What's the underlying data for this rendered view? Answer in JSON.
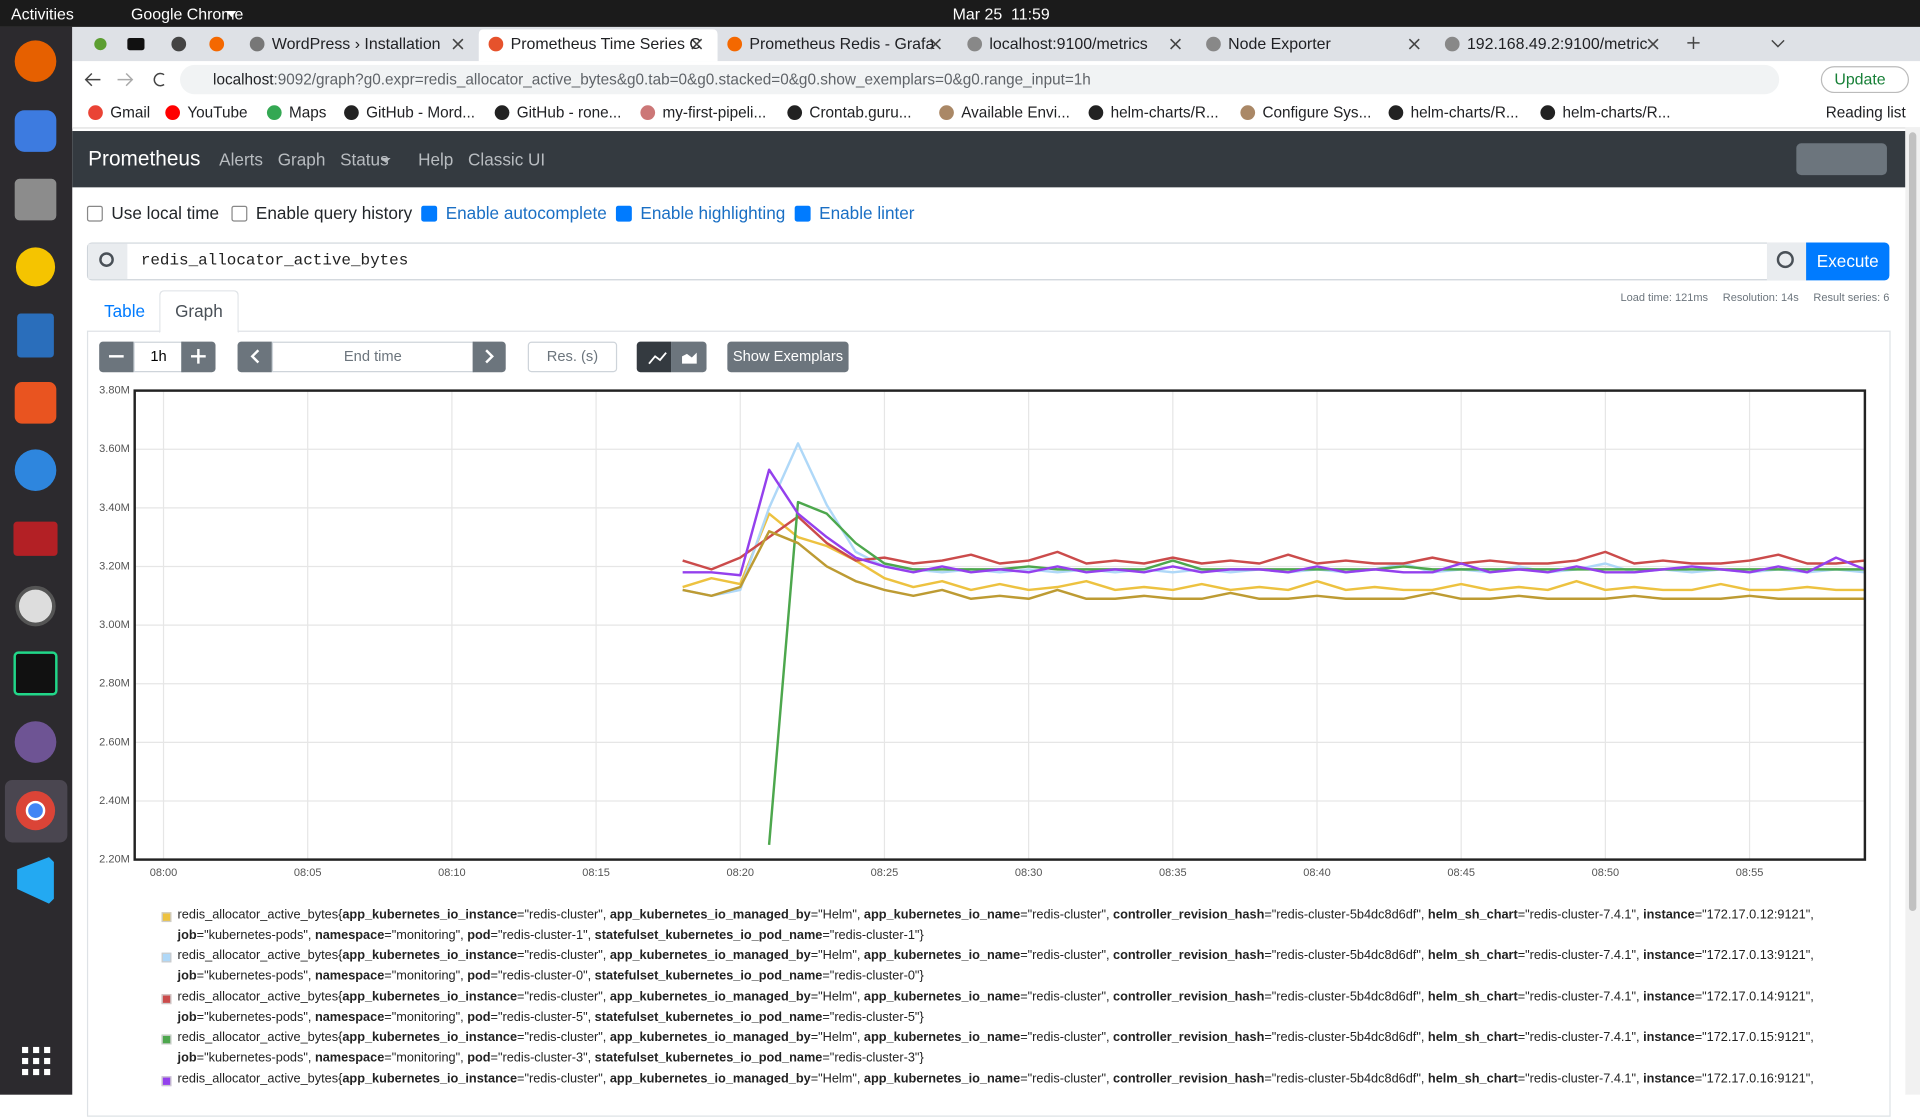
{
  "topbar": {
    "activities": "Activities",
    "app": "Google Chrome",
    "clock": "Mar 25  11:59"
  },
  "browser": {
    "tabs": [
      "WordPress › Installation",
      "Prometheus Time Series C",
      "Prometheus Redis - Grafa",
      "localhost:9100/metrics",
      "Node Exporter",
      "192.168.49.2:9100/metric"
    ],
    "url_host": "localhost",
    "url_rest": ":9092/graph?g0.expr=redis_allocator_active_bytes&g0.tab=0&g0.stacked=0&g0.show_exemplars=0&g0.range_input=1h",
    "update": "Update",
    "bookmarks": [
      "Gmail",
      "YouTube",
      "Maps",
      "GitHub - Mord...",
      "GitHub - rone...",
      "my-first-pipeli...",
      "Crontab.guru...",
      "Available Envi...",
      "helm-charts/R...",
      "Configure Sys...",
      "helm-charts/R...",
      "helm-charts/R..."
    ],
    "reading_list": "Reading list"
  },
  "prometheus": {
    "brand": "Prometheus",
    "nav": [
      "Alerts",
      "Graph",
      "Status",
      "Help",
      "Classic UI"
    ],
    "options": [
      {
        "label": "Use local time",
        "checked": false
      },
      {
        "label": "Enable query history",
        "checked": false
      },
      {
        "label": "Enable autocomplete",
        "checked": true
      },
      {
        "label": "Enable highlighting",
        "checked": true
      },
      {
        "label": "Enable linter",
        "checked": true
      }
    ],
    "query": "redis_allocator_active_bytes",
    "execute": "Execute",
    "tabs": [
      "Table",
      "Graph"
    ],
    "stats": [
      "Load time: 121ms",
      "Resolution: 14s",
      "Result series: 6"
    ],
    "range": "1h",
    "end_time": "End time",
    "res": "Res. (s)",
    "show_exemplars": "Show Exemplars"
  },
  "chart_data": {
    "type": "line",
    "x": [
      "08:18",
      "08:19",
      "08:20",
      "08:21",
      "08:22",
      "08:23",
      "08:24",
      "08:25",
      "08:26",
      "08:27",
      "08:28",
      "08:29",
      "08:30",
      "08:31",
      "08:32",
      "08:33",
      "08:34",
      "08:35",
      "08:36",
      "08:37",
      "08:38",
      "08:39",
      "08:40",
      "08:41",
      "08:42",
      "08:43",
      "08:44",
      "08:45",
      "08:46",
      "08:47",
      "08:48",
      "08:49",
      "08:50",
      "08:51",
      "08:52",
      "08:53",
      "08:54",
      "08:55",
      "08:56",
      "08:57",
      "08:58",
      "08:59"
    ],
    "xlim": [
      "07:59",
      "08:59"
    ],
    "xticks": [
      "08:00",
      "08:05",
      "08:10",
      "08:15",
      "08:20",
      "08:25",
      "08:30",
      "08:35",
      "08:40",
      "08:45",
      "08:50",
      "08:55"
    ],
    "ylim": [
      2200000,
      3800000
    ],
    "yticks": [
      {
        "value": 2200000,
        "label": "2.20M"
      },
      {
        "value": 2400000,
        "label": "2.40M"
      },
      {
        "value": 2600000,
        "label": "2.60M"
      },
      {
        "value": 2800000,
        "label": "2.80M"
      },
      {
        "value": 3000000,
        "label": "3.00M"
      },
      {
        "value": 3200000,
        "label": "3.20M"
      },
      {
        "value": 3400000,
        "label": "3.40M"
      },
      {
        "value": 3600000,
        "label": "3.60M"
      },
      {
        "value": 3800000,
        "label": "3.80M"
      }
    ],
    "grid": true,
    "series": [
      {
        "color": "#edc240",
        "values": [
          3130000,
          3160000,
          3140000,
          3380000,
          3300000,
          3270000,
          3220000,
          3160000,
          3130000,
          3150000,
          3120000,
          3140000,
          3120000,
          3130000,
          3150000,
          3120000,
          3130000,
          3120000,
          3140000,
          3120000,
          3130000,
          3120000,
          3150000,
          3120000,
          3130000,
          3120000,
          3120000,
          3140000,
          3120000,
          3130000,
          3120000,
          3150000,
          3120000,
          3130000,
          3120000,
          3120000,
          3140000,
          3120000,
          3120000,
          3130000,
          3120000,
          3120000
        ],
        "legend": [
          [
            {
              "t": "redis_allocator_active_bytes{"
            },
            {
              "b": "app_kubernetes_io_instance"
            },
            {
              "t": "=\"redis-cluster\", "
            },
            {
              "b": "app_kubernetes_io_managed_by"
            },
            {
              "t": "=\"Helm\", "
            },
            {
              "b": "app_kubernetes_io_name"
            },
            {
              "t": "=\"redis-cluster\", "
            },
            {
              "b": "controller_revision_hash"
            },
            {
              "t": "=\"redis-cluster-5b4dc8d6df\", "
            },
            {
              "b": "helm_sh_chart"
            },
            {
              "t": "=\"redis-cluster-7.4.1\", "
            },
            {
              "b": "instance"
            },
            {
              "t": "=\"172.17.0.12:9121\","
            }
          ],
          [
            {
              "b": "job"
            },
            {
              "t": "=\"kubernetes-pods\", "
            },
            {
              "b": "namespace"
            },
            {
              "t": "=\"monitoring\", "
            },
            {
              "b": "pod"
            },
            {
              "t": "=\"redis-cluster-1\", "
            },
            {
              "b": "statefulset_kubernetes_io_pod_name"
            },
            {
              "t": "=\"redis-cluster-1\"}"
            }
          ]
        ]
      },
      {
        "color": "#afd8f8",
        "values": [
          3120000,
          3100000,
          3120000,
          3400000,
          3620000,
          3410000,
          3250000,
          3200000,
          3190000,
          3180000,
          3190000,
          3180000,
          3190000,
          3180000,
          3190000,
          3180000,
          3190000,
          3180000,
          3190000,
          3180000,
          3190000,
          3180000,
          3190000,
          3180000,
          3190000,
          3210000,
          3180000,
          3190000,
          3180000,
          3200000,
          3180000,
          3190000,
          3210000,
          3180000,
          3190000,
          3180000,
          3190000,
          3180000,
          3190000,
          3180000,
          3190000,
          3180000
        ],
        "legend": [
          [
            {
              "t": "redis_allocator_active_bytes{"
            },
            {
              "b": "app_kubernetes_io_instance"
            },
            {
              "t": "=\"redis-cluster\", "
            },
            {
              "b": "app_kubernetes_io_managed_by"
            },
            {
              "t": "=\"Helm\", "
            },
            {
              "b": "app_kubernetes_io_name"
            },
            {
              "t": "=\"redis-cluster\", "
            },
            {
              "b": "controller_revision_hash"
            },
            {
              "t": "=\"redis-cluster-5b4dc8d6df\", "
            },
            {
              "b": "helm_sh_chart"
            },
            {
              "t": "=\"redis-cluster-7.4.1\", "
            },
            {
              "b": "instance"
            },
            {
              "t": "=\"172.17.0.13:9121\","
            }
          ],
          [
            {
              "b": "job"
            },
            {
              "t": "=\"kubernetes-pods\", "
            },
            {
              "b": "namespace"
            },
            {
              "t": "=\"monitoring\", "
            },
            {
              "b": "pod"
            },
            {
              "t": "=\"redis-cluster-0\", "
            },
            {
              "b": "statefulset_kubernetes_io_pod_name"
            },
            {
              "t": "=\"redis-cluster-0\"}"
            }
          ]
        ]
      },
      {
        "color": "#cb4b4b",
        "values": [
          3220000,
          3190000,
          3230000,
          3300000,
          3370000,
          3280000,
          3220000,
          3230000,
          3210000,
          3220000,
          3240000,
          3210000,
          3220000,
          3250000,
          3210000,
          3220000,
          3210000,
          3230000,
          3210000,
          3220000,
          3210000,
          3240000,
          3210000,
          3220000,
          3210000,
          3210000,
          3230000,
          3210000,
          3220000,
          3210000,
          3210000,
          3220000,
          3250000,
          3210000,
          3220000,
          3210000,
          3210000,
          3220000,
          3240000,
          3210000,
          3210000,
          3220000
        ],
        "legend": [
          [
            {
              "t": "redis_allocator_active_bytes{"
            },
            {
              "b": "app_kubernetes_io_instance"
            },
            {
              "t": "=\"redis-cluster\", "
            },
            {
              "b": "app_kubernetes_io_managed_by"
            },
            {
              "t": "=\"Helm\", "
            },
            {
              "b": "app_kubernetes_io_name"
            },
            {
              "t": "=\"redis-cluster\", "
            },
            {
              "b": "controller_revision_hash"
            },
            {
              "t": "=\"redis-cluster-5b4dc8d6df\", "
            },
            {
              "b": "helm_sh_chart"
            },
            {
              "t": "=\"redis-cluster-7.4.1\", "
            },
            {
              "b": "instance"
            },
            {
              "t": "=\"172.17.0.14:9121\","
            }
          ],
          [
            {
              "b": "job"
            },
            {
              "t": "=\"kubernetes-pods\", "
            },
            {
              "b": "namespace"
            },
            {
              "t": "=\"monitoring\", "
            },
            {
              "b": "pod"
            },
            {
              "t": "=\"redis-cluster-5\", "
            },
            {
              "b": "statefulset_kubernetes_io_pod_name"
            },
            {
              "t": "=\"redis-cluster-5\"}"
            }
          ]
        ]
      },
      {
        "color": "#4da74d",
        "values": [
          null,
          null,
          null,
          2250000,
          3420000,
          3380000,
          3280000,
          3210000,
          3190000,
          3190000,
          3190000,
          3190000,
          3200000,
          3190000,
          3190000,
          3190000,
          3190000,
          3220000,
          3190000,
          3190000,
          3190000,
          3190000,
          3190000,
          3190000,
          3190000,
          3200000,
          3190000,
          3190000,
          3190000,
          3190000,
          3190000,
          3190000,
          3190000,
          3190000,
          3190000,
          3190000,
          3190000,
          3190000,
          3190000,
          3190000,
          3190000,
          3190000
        ],
        "legend": [
          [
            {
              "t": "redis_allocator_active_bytes{"
            },
            {
              "b": "app_kubernetes_io_instance"
            },
            {
              "t": "=\"redis-cluster\", "
            },
            {
              "b": "app_kubernetes_io_managed_by"
            },
            {
              "t": "=\"Helm\", "
            },
            {
              "b": "app_kubernetes_io_name"
            },
            {
              "t": "=\"redis-cluster\", "
            },
            {
              "b": "controller_revision_hash"
            },
            {
              "t": "=\"redis-cluster-5b4dc8d6df\", "
            },
            {
              "b": "helm_sh_chart"
            },
            {
              "t": "=\"redis-cluster-7.4.1\", "
            },
            {
              "b": "instance"
            },
            {
              "t": "=\"172.17.0.15:9121\","
            }
          ],
          [
            {
              "b": "job"
            },
            {
              "t": "=\"kubernetes-pods\", "
            },
            {
              "b": "namespace"
            },
            {
              "t": "=\"monitoring\", "
            },
            {
              "b": "pod"
            },
            {
              "t": "=\"redis-cluster-3\", "
            },
            {
              "b": "statefulset_kubernetes_io_pod_name"
            },
            {
              "t": "=\"redis-cluster-3\"}"
            }
          ]
        ]
      },
      {
        "color": "#9440ed",
        "values": [
          3180000,
          3180000,
          3170000,
          3530000,
          3380000,
          3300000,
          3230000,
          3200000,
          3180000,
          3200000,
          3180000,
          3190000,
          3180000,
          3200000,
          3180000,
          3190000,
          3180000,
          3200000,
          3180000,
          3190000,
          3190000,
          3180000,
          3200000,
          3180000,
          3190000,
          3180000,
          3180000,
          3210000,
          3180000,
          3190000,
          3180000,
          3200000,
          3180000,
          3180000,
          3190000,
          3200000,
          3190000,
          3180000,
          3200000,
          3180000,
          3230000,
          3190000
        ],
        "legend": [
          [
            {
              "t": "redis_allocator_active_bytes{"
            },
            {
              "b": "app_kubernetes_io_instance"
            },
            {
              "t": "=\"redis-cluster\", "
            },
            {
              "b": "app_kubernetes_io_managed_by"
            },
            {
              "t": "=\"Helm\", "
            },
            {
              "b": "app_kubernetes_io_name"
            },
            {
              "t": "=\"redis-cluster\", "
            },
            {
              "b": "controller_revision_hash"
            },
            {
              "t": "=\"redis-cluster-5b4dc8d6df\", "
            },
            {
              "b": "helm_sh_chart"
            },
            {
              "t": "=\"redis-cluster-7.4.1\", "
            },
            {
              "b": "instance"
            },
            {
              "t": "=\"172.17.0.16:9121\","
            }
          ]
        ]
      },
      {
        "color": "#bd9b33",
        "values": [
          3120000,
          3100000,
          3130000,
          3320000,
          3280000,
          3200000,
          3150000,
          3120000,
          3100000,
          3120000,
          3090000,
          3100000,
          3090000,
          3120000,
          3090000,
          3090000,
          3100000,
          3090000,
          3090000,
          3110000,
          3090000,
          3090000,
          3100000,
          3090000,
          3090000,
          3090000,
          3110000,
          3090000,
          3090000,
          3100000,
          3090000,
          3090000,
          3090000,
          3100000,
          3090000,
          3090000,
          3090000,
          3100000,
          3090000,
          3090000,
          3090000,
          3090000
        ]
      }
    ]
  }
}
